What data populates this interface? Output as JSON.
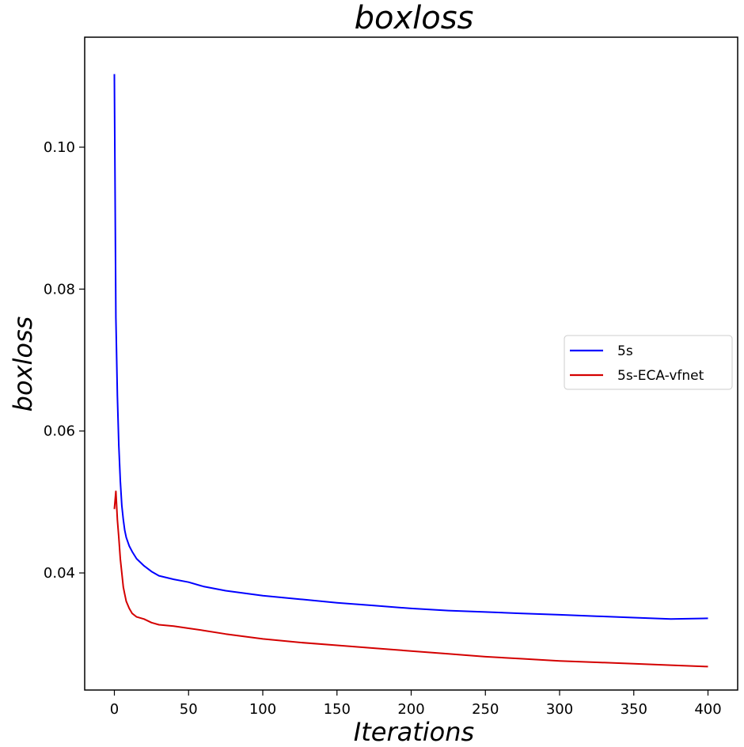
{
  "chart_data": {
    "type": "line",
    "title": "boxloss",
    "xlabel": "Iterations",
    "ylabel": "boxloss",
    "xlim": [
      -20,
      420
    ],
    "ylim": [
      0.0235,
      0.1155
    ],
    "xticks": [
      "0",
      "50",
      "100",
      "150",
      "200",
      "250",
      "300",
      "350",
      "400"
    ],
    "yticks": [
      "0.04",
      "0.06",
      "0.08",
      "0.10"
    ],
    "grid": false,
    "legend_position": "center-right",
    "x": [
      0,
      1,
      2,
      3,
      4,
      5,
      6,
      7,
      8,
      10,
      12,
      15,
      20,
      25,
      30,
      40,
      50,
      60,
      75,
      100,
      125,
      150,
      175,
      200,
      225,
      250,
      275,
      300,
      325,
      350,
      375,
      400
    ],
    "series": [
      {
        "name": "5s",
        "color": "#0000ff",
        "values": [
          0.1103,
          0.076,
          0.065,
          0.058,
          0.053,
          0.0495,
          0.0475,
          0.046,
          0.045,
          0.0438,
          0.043,
          0.042,
          0.041,
          0.0402,
          0.0396,
          0.0391,
          0.0387,
          0.0381,
          0.0375,
          0.0368,
          0.0363,
          0.0358,
          0.0354,
          0.035,
          0.0347,
          0.0345,
          0.0343,
          0.0341,
          0.0339,
          0.0337,
          0.0335,
          0.0336
        ]
      },
      {
        "name": "5s-ECA-vfnet",
        "color": "#d40000",
        "values": [
          0.049,
          0.0515,
          0.0475,
          0.045,
          0.042,
          0.04,
          0.038,
          0.037,
          0.036,
          0.035,
          0.0343,
          0.0338,
          0.0335,
          0.033,
          0.0327,
          0.0325,
          0.0322,
          0.0319,
          0.0314,
          0.0307,
          0.0302,
          0.0298,
          0.0294,
          0.029,
          0.0286,
          0.0282,
          0.0279,
          0.0276,
          0.0274,
          0.0272,
          0.027,
          0.0268
        ]
      }
    ]
  }
}
